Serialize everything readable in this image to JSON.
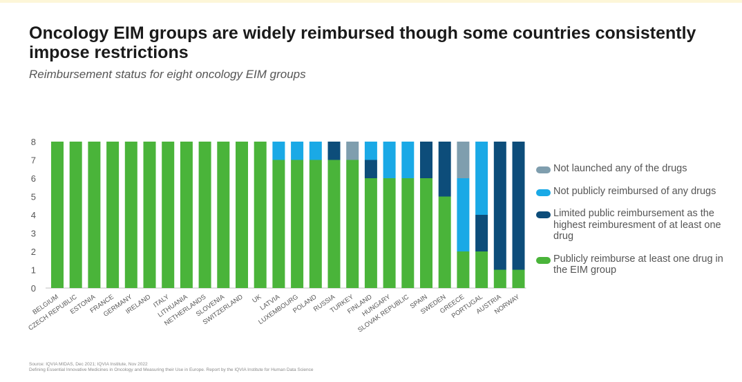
{
  "title": "Oncology EIM groups are widely reimbursed though some countries consistently impose restrictions",
  "subtitle": "Reimbursement status for eight oncology EIM groups",
  "source": {
    "line1": "Source: IQVIA MIDAS, Dec 2021;  IQVIA Institute, Nov 2022",
    "line2": "Defining Essential Innovative Medicines in Oncology and Measuring their Use in Europe. Report by the IQVIA Institute for Human Data Science"
  },
  "colors": {
    "publicly": "#4ab43a",
    "limited": "#0d4d7a",
    "not_reimbursed": "#1aa9e6",
    "not_launched": "#7f9eae"
  },
  "legend": [
    {
      "key": "not_launched",
      "label": "Not launched any of the drugs",
      "icon": "rounded-swatch-icon"
    },
    {
      "key": "not_reimbursed",
      "label": "Not publicly reimbursed of any drugs",
      "icon": "rounded-swatch-icon"
    },
    {
      "key": "limited",
      "label": "Limited public reimbursement as the highest reimburesment of at least one drug",
      "icon": "rounded-swatch-icon"
    },
    {
      "key": "publicly",
      "label": "Publicly reimburse at least one drug in the EIM group",
      "icon": "rounded-swatch-icon"
    }
  ],
  "chart_data": {
    "type": "bar",
    "stacked": true,
    "categories": [
      "BELGIUM",
      "CZECH REPUBLIC",
      "ESTONIA",
      "FRANCE",
      "GERMANY",
      "IRELAND",
      "ITALY",
      "LITHUANIA",
      "NETHERLANDS",
      "SLOVENIA",
      "SWITZERLAND",
      "UK",
      "LATVIA",
      "LUXEMBOURG",
      "POLAND",
      "RUSSIA",
      "TURKEY",
      "FINLAND",
      "HUNGARY",
      "SLOVAK REPUBLIC",
      "SPAIN",
      "SWEDEN",
      "GREECE",
      "PORTUGAL",
      "AUSTRIA",
      "NORWAY"
    ],
    "series": [
      {
        "name": "Publicly reimburse at least one drug in the EIM group",
        "key": "publicly",
        "values": [
          8,
          8,
          8,
          8,
          8,
          8,
          8,
          8,
          8,
          8,
          8,
          8,
          7,
          7,
          7,
          7,
          7,
          6,
          6,
          6,
          6,
          5,
          2,
          2,
          1,
          1
        ]
      },
      {
        "name": "Limited public reimbursement as the highest reimburesment of at least one drug",
        "key": "limited",
        "values": [
          0,
          0,
          0,
          0,
          0,
          0,
          0,
          0,
          0,
          0,
          0,
          0,
          0,
          0,
          0,
          1,
          0,
          1,
          0,
          0,
          2,
          3,
          0,
          2,
          7,
          7
        ]
      },
      {
        "name": "Not publicly reimbursed of any drugs",
        "key": "not_reimbursed",
        "values": [
          0,
          0,
          0,
          0,
          0,
          0,
          0,
          0,
          0,
          0,
          0,
          0,
          1,
          1,
          1,
          0,
          0,
          1,
          2,
          2,
          0,
          0,
          4,
          4,
          0,
          0
        ]
      },
      {
        "name": "Not launched any of the drugs",
        "key": "not_launched",
        "values": [
          0,
          0,
          0,
          0,
          0,
          0,
          0,
          0,
          0,
          0,
          0,
          0,
          0,
          0,
          0,
          0,
          1,
          0,
          0,
          0,
          0,
          0,
          2,
          0,
          0,
          0
        ]
      }
    ],
    "yticks": [
      0,
      1,
      2,
      3,
      4,
      5,
      6,
      7,
      8
    ],
    "ylim": [
      0,
      8
    ],
    "grid": false,
    "legend_position": "right"
  }
}
